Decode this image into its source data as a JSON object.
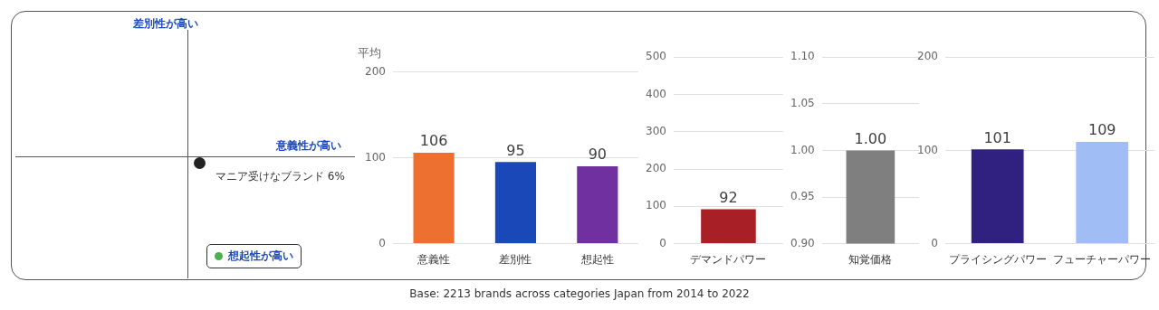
{
  "chart_data": [
    {
      "type": "other",
      "ylabel": "差別性が高い",
      "xlabel": "意義性が高い",
      "annotations": [
        "マニア受けなブランド 6%",
        "想起性が高い"
      ]
    },
    {
      "type": "bar",
      "title": "平均",
      "categories": [
        "意義性",
        "差別性",
        "想起性"
      ],
      "values": [
        106,
        95,
        90
      ],
      "colors": [
        "#ed7030",
        "#1b48b8",
        "#7030a0"
      ],
      "ylim": [
        0,
        200
      ],
      "yticks": [
        0,
        100,
        200
      ],
      "grid": "y",
      "data_labels": true
    },
    {
      "type": "bar",
      "categories": [
        "デマンドパワー"
      ],
      "values": [
        92
      ],
      "colors": [
        "#a81f25"
      ],
      "ylim": [
        0,
        500
      ],
      "yticks": [
        0,
        100,
        200,
        300,
        400,
        500
      ],
      "grid": "y",
      "data_labels": true
    },
    {
      "type": "bar",
      "categories": [
        "知覚価格"
      ],
      "values": [
        1.0
      ],
      "value_labels": [
        "1.00"
      ],
      "colors": [
        "#7f7f7f"
      ],
      "ylim": [
        0.9,
        1.1
      ],
      "yticks": [
        {
          "value": 0.9,
          "label": "0.90"
        },
        {
          "value": 0.95,
          "label": "0.95"
        },
        {
          "value": 1.0,
          "label": "1.00"
        },
        {
          "value": 1.05,
          "label": "1.05"
        },
        {
          "value": 1.1,
          "label": "1.10"
        }
      ],
      "grid": "y"
    },
    {
      "type": "bar",
      "categories": [
        "プライシングパワー",
        "フューチャーパワー"
      ],
      "values": [
        101,
        109
      ],
      "colors": [
        "#302080",
        "#a0bdf5"
      ],
      "ylim": [
        0,
        200
      ],
      "yticks": [
        0,
        100,
        200
      ],
      "grid": "y",
      "data_labels": true,
      "annotations": [
        "Base: 2213 brands across categories Japan from 2014 to 2022"
      ]
    }
  ]
}
